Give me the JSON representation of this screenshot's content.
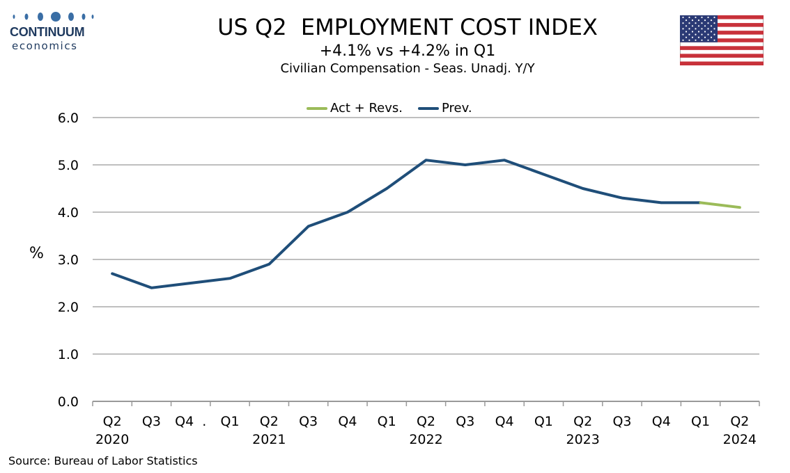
{
  "logo": {
    "name": "CONTINUUM",
    "sub": "economics"
  },
  "header": {
    "title": "US Q2  EMPLOYMENT COST INDEX",
    "subtitle": "+4.1% vs +4.2% in Q1",
    "subtitle2": "Civilian Compensation - Seas. Unadj. Y/Y"
  },
  "flag": {
    "icon": "us-flag-icon"
  },
  "source": "Source: Bureau of Labor Statistics",
  "colors": {
    "act": "#9bbb59",
    "prev": "#1f4e79",
    "grid": "#bfbfbf",
    "logo": "#1f3a5f"
  },
  "chart_data": {
    "type": "line",
    "ylabel": "%",
    "ylim": [
      0,
      6
    ],
    "yticks": [
      "0.0",
      "1.0",
      "2.0",
      "3.0",
      "4.0",
      "5.0",
      "6.0"
    ],
    "grid": true,
    "legend_position": "top-center",
    "categories": [
      "Q2",
      "Q3",
      "Q4",
      "Q1",
      "Q2",
      "Q3",
      "Q4",
      "Q1",
      "Q2",
      "Q3",
      "Q4",
      "Q1",
      "Q2",
      "Q3",
      "Q4",
      "Q1",
      "Q2"
    ],
    "category_labels": [
      "Q2",
      "Q3",
      "Q4  .",
      "Q1",
      "Q2",
      "Q3",
      "Q4",
      "Q1",
      "Q2",
      "Q3",
      "Q4",
      "Q1",
      "Q2",
      "Q3",
      "Q4",
      "Q1",
      "Q2"
    ],
    "years": [
      {
        "label": "2020",
        "index": 0
      },
      {
        "label": "2021",
        "index": 4
      },
      {
        "label": "2022",
        "index": 8
      },
      {
        "label": "2023",
        "index": 12
      },
      {
        "label": "2024",
        "index": 16
      }
    ],
    "series": [
      {
        "name": "Act + Revs.",
        "color": "#9bbb59",
        "values": [
          null,
          null,
          null,
          null,
          null,
          null,
          null,
          null,
          null,
          null,
          null,
          null,
          null,
          null,
          null,
          4.2,
          4.1
        ]
      },
      {
        "name": "Prev.",
        "color": "#1f4e79",
        "values": [
          2.7,
          2.4,
          2.5,
          2.6,
          2.9,
          3.7,
          4.0,
          4.5,
          5.1,
          5.0,
          5.1,
          4.8,
          4.5,
          4.3,
          4.2,
          4.2,
          null
        ]
      }
    ]
  }
}
